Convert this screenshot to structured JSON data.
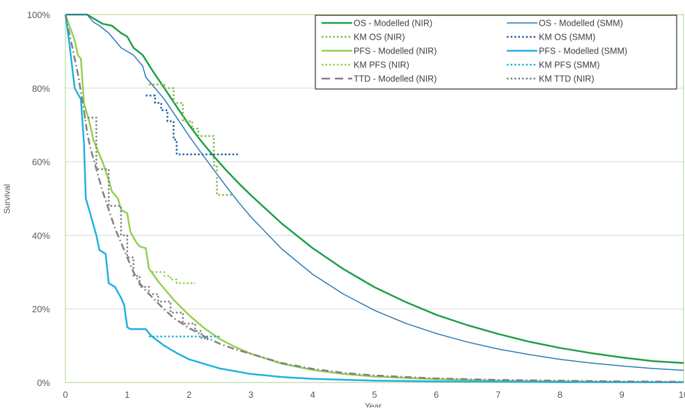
{
  "chart_data": {
    "type": "line",
    "title": "",
    "xlabel": "Year",
    "ylabel": "Survival",
    "xlim": [
      0,
      10
    ],
    "ylim": [
      0,
      100
    ],
    "y_unit": "%",
    "x_ticks": [
      0,
      1,
      2,
      3,
      4,
      5,
      6,
      7,
      8,
      9,
      10
    ],
    "y_ticks": [
      0,
      20,
      40,
      60,
      80,
      100
    ],
    "x_tick_labels": [
      "0",
      "1",
      "2",
      "3",
      "4",
      "5",
      "6",
      "7",
      "8",
      "9",
      "10"
    ],
    "y_tick_labels": [
      "0%",
      "20%",
      "40%",
      "60%",
      "80%",
      "100%"
    ],
    "grid": "horizontal",
    "legend_position": "top-right",
    "series": [
      {
        "name": "OS - Modelled (NIR)",
        "color": "#1e9e4a",
        "style": "solid",
        "width": 2.5,
        "step": false,
        "points": [
          [
            0,
            100
          ],
          [
            0.35,
            100
          ],
          [
            0.45,
            99
          ],
          [
            0.6,
            97.5
          ],
          [
            0.75,
            97
          ],
          [
            0.9,
            95
          ],
          [
            1,
            94
          ],
          [
            1.1,
            91
          ],
          [
            1.25,
            89
          ],
          [
            1.4,
            85
          ],
          [
            1.6,
            80
          ],
          [
            1.8,
            75
          ],
          [
            2,
            70
          ],
          [
            2.2,
            65.5
          ],
          [
            2.4,
            61.5
          ],
          [
            2.6,
            57.7
          ],
          [
            2.8,
            54.2
          ],
          [
            3,
            50.9
          ],
          [
            3.5,
            43.2
          ],
          [
            4,
            36.5
          ],
          [
            4.5,
            30.8
          ],
          [
            5,
            25.9
          ],
          [
            5.5,
            21.9
          ],
          [
            6,
            18.4
          ],
          [
            6.5,
            15.6
          ],
          [
            7,
            13.2
          ],
          [
            7.5,
            11.1
          ],
          [
            8,
            9.4
          ],
          [
            8.5,
            8
          ],
          [
            9,
            6.8
          ],
          [
            9.5,
            5.8
          ],
          [
            10,
            5.3
          ]
        ]
      },
      {
        "name": "OS - Modelled (SMM)",
        "color": "#2a78b5",
        "style": "solid",
        "width": 1.5,
        "step": false,
        "points": [
          [
            0,
            100
          ],
          [
            0.35,
            100
          ],
          [
            0.45,
            98
          ],
          [
            0.55,
            97
          ],
          [
            0.7,
            95
          ],
          [
            0.8,
            93
          ],
          [
            0.9,
            91
          ],
          [
            1,
            90
          ],
          [
            1.1,
            89
          ],
          [
            1.25,
            86
          ],
          [
            1.3,
            83
          ],
          [
            1.4,
            81
          ],
          [
            1.6,
            77
          ],
          [
            1.8,
            72
          ],
          [
            2,
            67
          ],
          [
            2.2,
            62.3
          ],
          [
            2.4,
            57.8
          ],
          [
            2.6,
            53.3
          ],
          [
            2.8,
            49
          ],
          [
            3,
            45
          ],
          [
            3.5,
            36.3
          ],
          [
            4,
            29.4
          ],
          [
            4.5,
            24
          ],
          [
            5,
            19.6
          ],
          [
            5.5,
            16.1
          ],
          [
            6,
            13.3
          ],
          [
            6.5,
            11
          ],
          [
            7,
            9.1
          ],
          [
            7.5,
            7.6
          ],
          [
            8,
            6.3
          ],
          [
            8.5,
            5.3
          ],
          [
            9,
            4.5
          ],
          [
            9.5,
            3.8
          ],
          [
            10,
            3.3
          ]
        ]
      },
      {
        "name": "KM OS (NIR)",
        "color": "#7cbb45",
        "style": "dotted",
        "width": 2.5,
        "step": true,
        "points": [
          [
            1.35,
            81
          ],
          [
            1.6,
            80
          ],
          [
            1.75,
            76
          ],
          [
            1.9,
            71
          ],
          [
            2.05,
            69
          ],
          [
            2.15,
            67
          ],
          [
            2.35,
            67
          ],
          [
            2.4,
            59
          ],
          [
            2.45,
            51
          ],
          [
            2.7,
            51
          ]
        ]
      },
      {
        "name": "KM OS (SMM)",
        "color": "#1f5fa0",
        "style": "dotted",
        "width": 2.5,
        "step": true,
        "points": [
          [
            1.3,
            78
          ],
          [
            1.45,
            76
          ],
          [
            1.55,
            74
          ],
          [
            1.65,
            71
          ],
          [
            1.75,
            66
          ],
          [
            1.8,
            62
          ],
          [
            2.8,
            62
          ]
        ]
      },
      {
        "name": "PFS - Modelled (NIR)",
        "color": "#92d050",
        "style": "solid",
        "width": 2.5,
        "step": false,
        "points": [
          [
            0,
            100
          ],
          [
            0.15,
            93
          ],
          [
            0.2,
            89
          ],
          [
            0.25,
            88
          ],
          [
            0.3,
            76
          ],
          [
            0.4,
            70
          ],
          [
            0.45,
            66
          ],
          [
            0.55,
            62
          ],
          [
            0.6,
            60
          ],
          [
            0.7,
            55
          ],
          [
            0.75,
            52
          ],
          [
            0.85,
            50
          ],
          [
            0.9,
            47
          ],
          [
            1,
            46
          ],
          [
            1.05,
            41
          ],
          [
            1.15,
            38
          ],
          [
            1.2,
            37
          ],
          [
            1.3,
            36.5
          ],
          [
            1.35,
            31
          ],
          [
            1.5,
            27.5
          ],
          [
            1.75,
            22.5
          ],
          [
            2,
            18.3
          ],
          [
            2.25,
            14.7
          ],
          [
            2.5,
            11.8
          ],
          [
            2.75,
            9.6
          ],
          [
            3,
            7.8
          ],
          [
            3.5,
            5.1
          ],
          [
            4,
            3.4
          ],
          [
            4.5,
            2.3
          ],
          [
            5,
            1.6
          ],
          [
            6,
            0.9
          ],
          [
            7,
            0.5
          ],
          [
            8,
            0.3
          ],
          [
            9,
            0.15
          ],
          [
            10,
            0.1
          ]
        ]
      },
      {
        "name": "PFS - Modelled (SMM)",
        "color": "#20b0e0",
        "style": "solid",
        "width": 2.5,
        "step": false,
        "points": [
          [
            0,
            100
          ],
          [
            0.05,
            94
          ],
          [
            0.1,
            87
          ],
          [
            0.15,
            80
          ],
          [
            0.25,
            77
          ],
          [
            0.3,
            65
          ],
          [
            0.33,
            50
          ],
          [
            0.4,
            46
          ],
          [
            0.5,
            40
          ],
          [
            0.55,
            36
          ],
          [
            0.65,
            35
          ],
          [
            0.7,
            27
          ],
          [
            0.8,
            26
          ],
          [
            0.9,
            23
          ],
          [
            0.95,
            21
          ],
          [
            1,
            15
          ],
          [
            1.05,
            14.5
          ],
          [
            1.3,
            14.5
          ],
          [
            1.4,
            12.5
          ],
          [
            1.6,
            10
          ],
          [
            1.8,
            8
          ],
          [
            2,
            6.3
          ],
          [
            2.5,
            3.8
          ],
          [
            3,
            2.3
          ],
          [
            3.5,
            1.5
          ],
          [
            4,
            1
          ],
          [
            5,
            0.5
          ],
          [
            6,
            0.3
          ],
          [
            7,
            0.2
          ],
          [
            8,
            0.1
          ],
          [
            10,
            0.05
          ]
        ]
      },
      {
        "name": "KM PFS (NIR)",
        "color": "#92d050",
        "style": "dotted",
        "width": 2.5,
        "step": true,
        "points": [
          [
            1.4,
            30
          ],
          [
            1.6,
            29
          ],
          [
            1.7,
            28
          ],
          [
            1.8,
            27
          ],
          [
            2.1,
            27
          ]
        ]
      },
      {
        "name": "KM PFS (SMM)",
        "color": "#20b0e0",
        "style": "dotted",
        "width": 2.5,
        "step": true,
        "points": [
          [
            1.35,
            12.5
          ],
          [
            2.5,
            12.5
          ]
        ]
      },
      {
        "name": "TTD - Modelled (NIR)",
        "color": "#808080",
        "style": "dashed",
        "width": 2.5,
        "step": false,
        "points": [
          [
            0,
            100
          ],
          [
            0.05,
            96
          ],
          [
            0.1,
            92
          ],
          [
            0.15,
            88
          ],
          [
            0.2,
            84
          ],
          [
            0.25,
            79
          ],
          [
            0.3,
            74
          ],
          [
            0.35,
            68
          ],
          [
            0.4,
            64
          ],
          [
            0.5,
            58
          ],
          [
            0.6,
            52
          ],
          [
            0.7,
            47
          ],
          [
            0.8,
            42
          ],
          [
            0.9,
            38
          ],
          [
            1,
            34
          ],
          [
            1.1,
            30
          ],
          [
            1.2,
            27
          ],
          [
            1.3,
            25
          ],
          [
            1.5,
            21.5
          ],
          [
            1.75,
            17.5
          ],
          [
            2,
            14.8
          ],
          [
            2.25,
            12.5
          ],
          [
            2.5,
            10.5
          ],
          [
            2.75,
            9
          ],
          [
            3,
            7.8
          ],
          [
            3.5,
            5.3
          ],
          [
            4,
            3.7
          ],
          [
            4.5,
            2.6
          ],
          [
            5,
            1.9
          ],
          [
            6,
            1.1
          ],
          [
            7,
            0.7
          ],
          [
            8,
            0.5
          ],
          [
            9,
            0.3
          ],
          [
            10,
            0.2
          ]
        ]
      },
      {
        "name": "KM TTD (NIR)",
        "color": "#808080",
        "style": "dotted",
        "width": 2.5,
        "step": true,
        "points": [
          [
            0.3,
            72
          ],
          [
            0.5,
            58
          ],
          [
            0.7,
            48
          ],
          [
            0.9,
            40
          ],
          [
            1,
            34
          ],
          [
            1.1,
            29
          ],
          [
            1.2,
            26
          ],
          [
            1.35,
            24
          ],
          [
            1.5,
            22
          ],
          [
            1.7,
            19
          ],
          [
            1.9,
            16
          ],
          [
            2.1,
            14
          ],
          [
            2.2,
            12
          ],
          [
            2.3,
            11
          ]
        ]
      }
    ],
    "legend_order": [
      [
        "OS - Modelled (NIR)",
        "OS - Modelled (SMM)"
      ],
      [
        "KM OS (NIR)",
        "KM OS (SMM)"
      ],
      [
        "PFS - Modelled (NIR)",
        "PFS - Modelled (SMM)"
      ],
      [
        "KM PFS (NIR)",
        "KM PFS (SMM)"
      ],
      [
        "TTD - Modelled (NIR)",
        "KM TTD (NIR)"
      ]
    ]
  }
}
